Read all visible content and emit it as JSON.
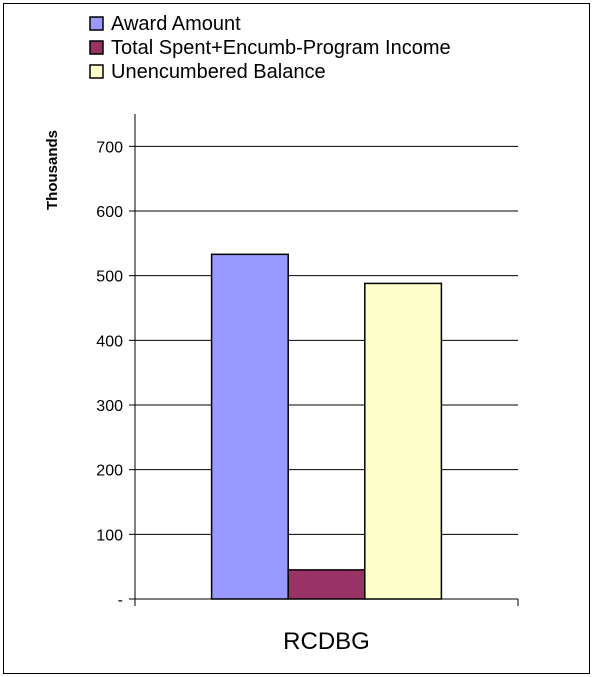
{
  "chart_data": {
    "type": "bar",
    "categories": [
      "RCDBG"
    ],
    "series": [
      {
        "name": "Award Amount",
        "values": [
          533
        ],
        "color": "#9999ff"
      },
      {
        "name": "Total Spent+Encumb-Program Income",
        "values": [
          45
        ],
        "color": "#993366"
      },
      {
        "name": "Unencumbered Balance",
        "values": [
          488
        ],
        "color": "#ffffcc"
      }
    ],
    "title": "",
    "xlabel": "",
    "ylabel": "Thousands",
    "ylim": [
      0,
      750
    ],
    "yticks": [
      0,
      100,
      200,
      300,
      400,
      500,
      600,
      700
    ],
    "ytick_labels": [
      "-",
      "100",
      "200",
      "300",
      "400",
      "500",
      "600",
      "700"
    ],
    "grid": true,
    "legend_position": "top"
  }
}
